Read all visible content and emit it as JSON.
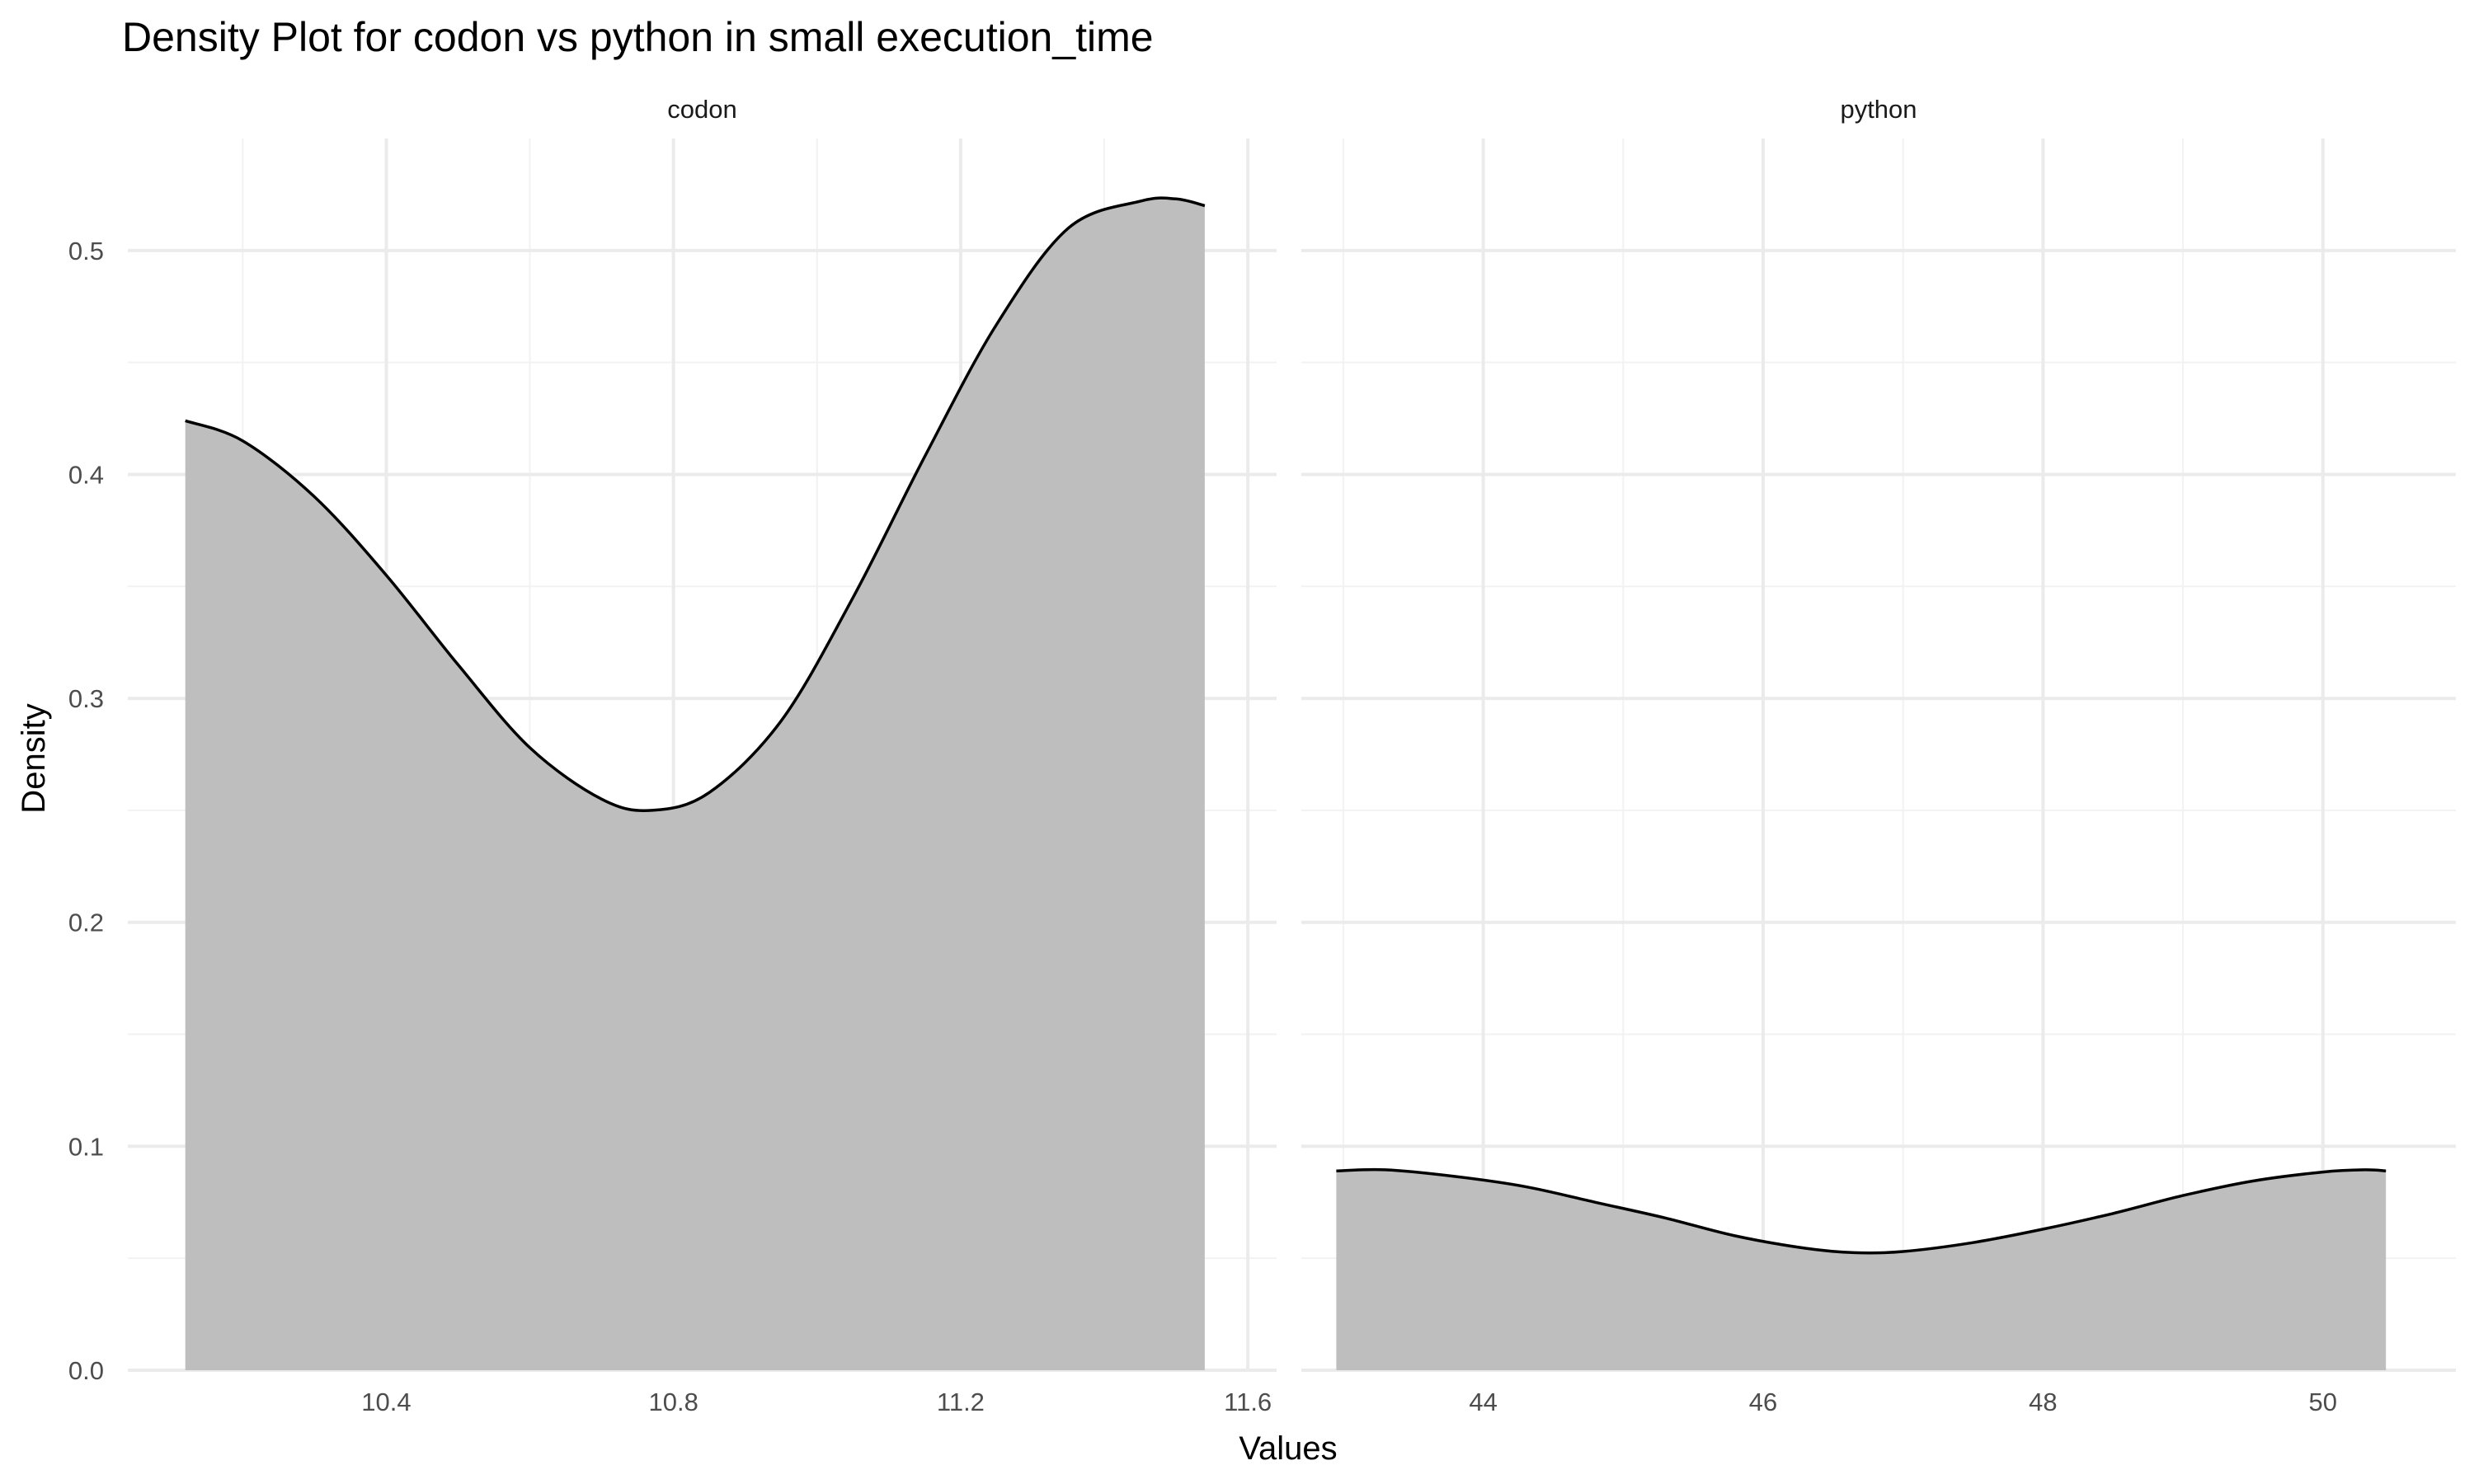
{
  "chart_data": {
    "type": "area",
    "title": "Density Plot for codon vs python in small execution_time",
    "xlabel": "Values",
    "ylabel": "Density",
    "ylim": [
      0,
      0.55
    ],
    "yticks": [
      0.0,
      0.1,
      0.2,
      0.3,
      0.4,
      0.5
    ],
    "ytick_labels": [
      "0.0",
      "0.1",
      "0.2",
      "0.3",
      "0.4",
      "0.5"
    ],
    "grid": true,
    "fill_color": "#bebebe",
    "line_color": "#000000",
    "panels": [
      {
        "name": "codon",
        "xlim": [
          10.04,
          11.64
        ],
        "xticks": [
          10.4,
          10.8,
          11.2,
          11.6
        ],
        "xtick_labels": [
          "10.4",
          "10.8",
          "11.2",
          "11.6"
        ],
        "x": [
          10.12,
          10.2,
          10.3,
          10.4,
          10.5,
          10.6,
          10.7,
          10.77,
          10.85,
          10.95,
          11.05,
          11.15,
          11.25,
          11.35,
          11.45,
          11.5,
          11.54
        ],
        "values": [
          0.424,
          0.415,
          0.39,
          0.355,
          0.315,
          0.278,
          0.255,
          0.25,
          0.258,
          0.29,
          0.345,
          0.408,
          0.467,
          0.51,
          0.522,
          0.523,
          0.52
        ]
      },
      {
        "name": "python",
        "xlim": [
          42.7,
          50.95
        ],
        "xticks": [
          44,
          46,
          48,
          50
        ],
        "xtick_labels": [
          "44",
          "46",
          "48",
          "50"
        ],
        "x": [
          42.95,
          43.3,
          43.8,
          44.3,
          44.8,
          45.3,
          45.8,
          46.3,
          46.65,
          47.0,
          47.5,
          48.0,
          48.5,
          49.0,
          49.5,
          50.0,
          50.3,
          50.45
        ],
        "values": [
          0.089,
          0.0895,
          0.0865,
          0.082,
          0.075,
          0.068,
          0.06,
          0.0545,
          0.0525,
          0.053,
          0.057,
          0.063,
          0.07,
          0.078,
          0.0845,
          0.0885,
          0.0895,
          0.089
        ]
      }
    ]
  }
}
